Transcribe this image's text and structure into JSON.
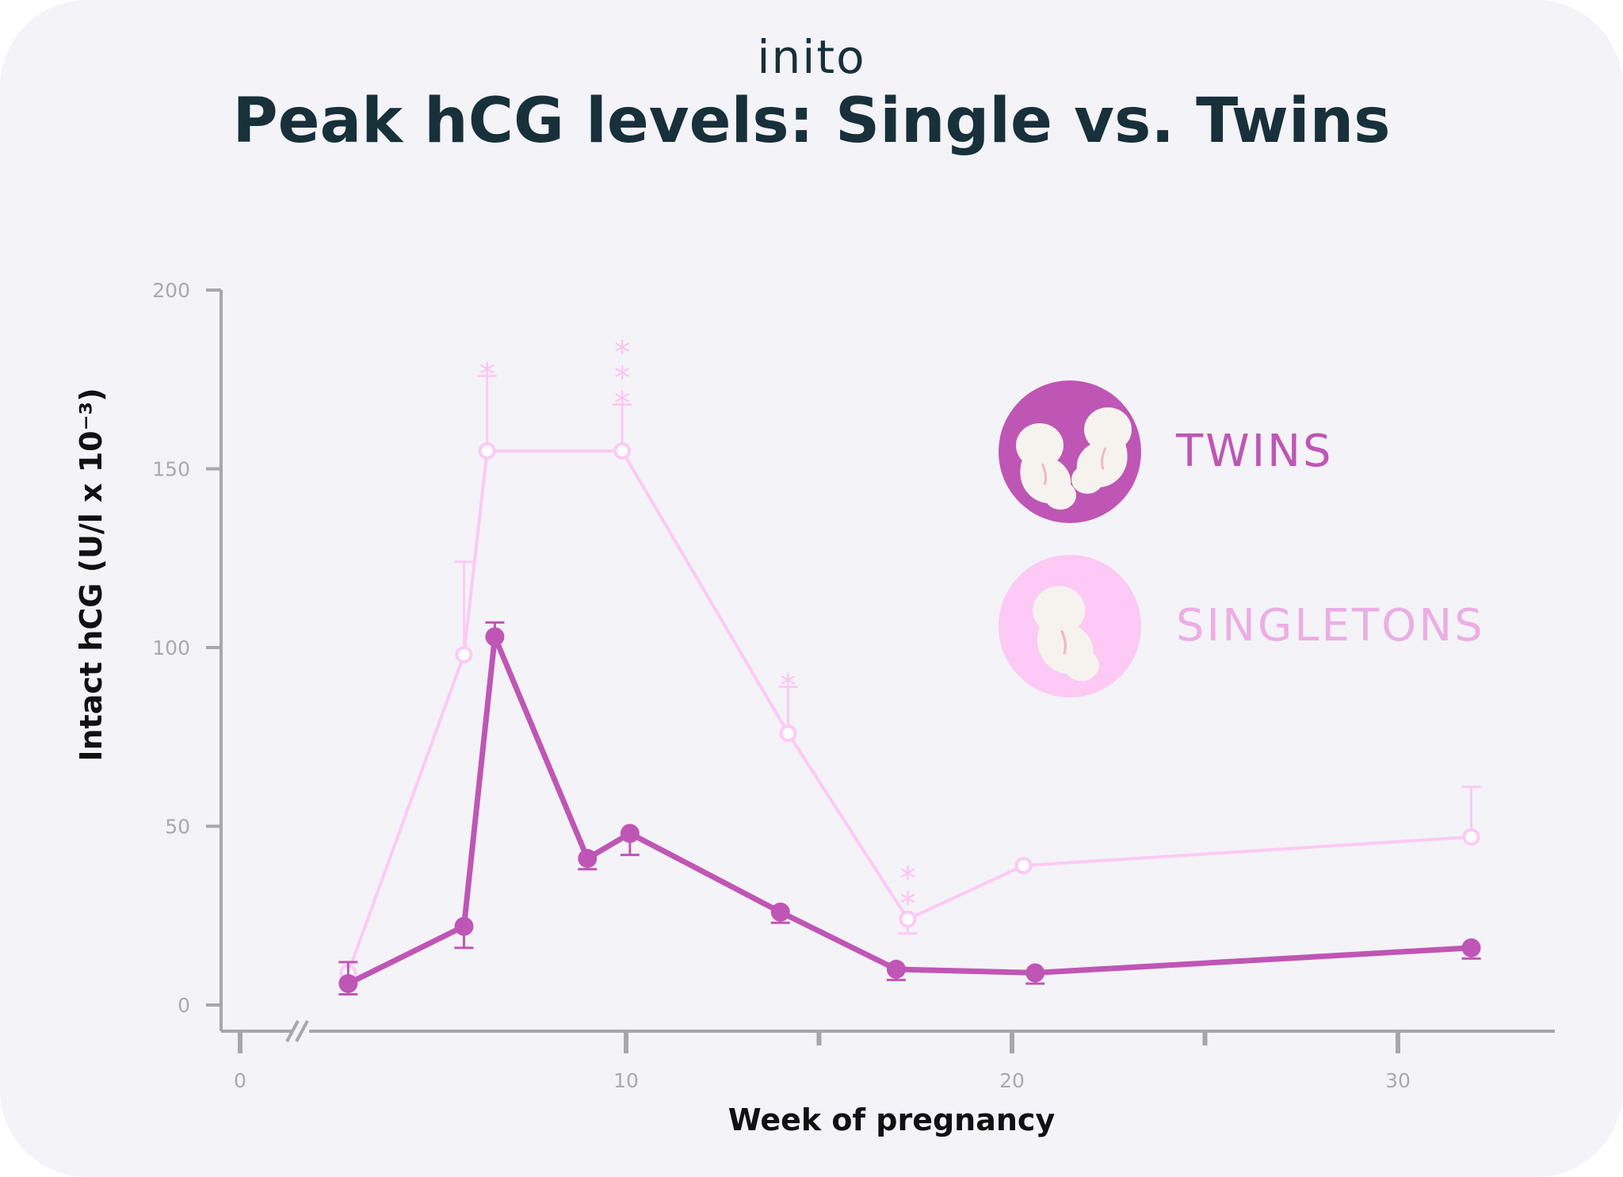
{
  "brand": {
    "logo_text": "inito"
  },
  "colors": {
    "twins": "#bf56b5",
    "singletons": "#fccaf4",
    "singletons_label": "#ebaee4",
    "axis": "#a7a7ab",
    "background": "#f4f3f8",
    "title": "#17303a"
  },
  "chart_data": {
    "type": "line",
    "title": "Peak hCG levels: Single vs. Twins",
    "xlabel": "Week of pregnancy",
    "ylabel": "Intact hCG (U/l x 10⁻³)",
    "xlim": [
      0,
      33
    ],
    "ylim": [
      0,
      200
    ],
    "x_ticks": [
      0,
      10,
      20,
      30
    ],
    "x_minor_ticks": [
      15,
      25
    ],
    "y_ticks": [
      0,
      50,
      100,
      150,
      200
    ],
    "axis_break": true,
    "legend_position": "right",
    "series": [
      {
        "name": "SINGLETONS",
        "marker": "hollow-circle",
        "icon": "single-fetus-icon",
        "points": [
          {
            "x": 2.8,
            "y": 9,
            "err_upper": null,
            "sig": ""
          },
          {
            "x": 5.8,
            "y": 98,
            "err_upper": 124,
            "sig": ""
          },
          {
            "x": 6.4,
            "y": 155,
            "err_upper": 176,
            "sig": "*"
          },
          {
            "x": 9.9,
            "y": 155,
            "err_upper": 168,
            "sig": "***"
          },
          {
            "x": 14.2,
            "y": 76,
            "err_upper": 89,
            "sig": "*"
          },
          {
            "x": 17.3,
            "y": 24,
            "err_lower": 20,
            "sig": "**"
          },
          {
            "x": 20.3,
            "y": 39,
            "sig": ""
          },
          {
            "x": 31.9,
            "y": 47,
            "err_upper": 61,
            "sig": ""
          }
        ]
      },
      {
        "name": "TWINS",
        "marker": "filled-circle",
        "icon": "twin-fetuses-icon",
        "points": [
          {
            "x": 2.8,
            "y": 6,
            "err_upper": 12,
            "err_lower": 3
          },
          {
            "x": 5.8,
            "y": 22,
            "err_lower": 16
          },
          {
            "x": 6.6,
            "y": 103,
            "err_upper": 107
          },
          {
            "x": 9.0,
            "y": 41,
            "err_lower": 38
          },
          {
            "x": 10.1,
            "y": 48,
            "err_lower": 42
          },
          {
            "x": 14.0,
            "y": 26,
            "err_lower": 23
          },
          {
            "x": 17.0,
            "y": 10,
            "err_lower": 7
          },
          {
            "x": 20.6,
            "y": 9,
            "err_lower": 6
          },
          {
            "x": 31.9,
            "y": 16,
            "err_lower": 13
          }
        ]
      }
    ]
  }
}
